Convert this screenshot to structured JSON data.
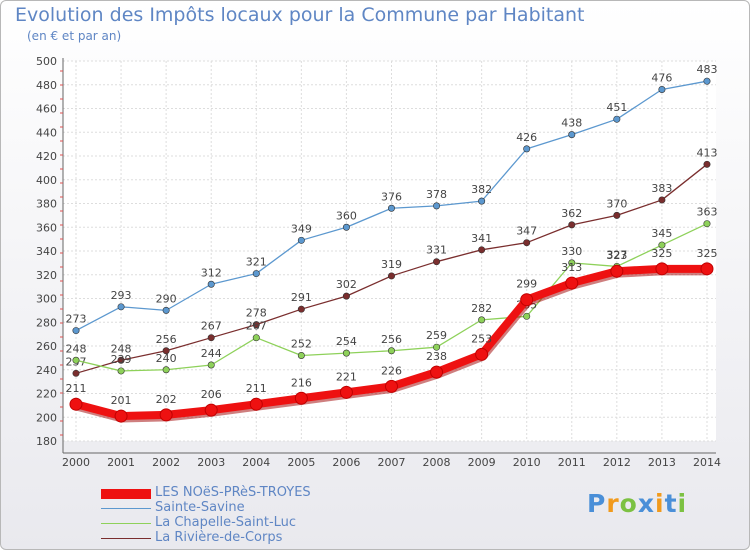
{
  "chart_data": {
    "type": "line",
    "title": "Evolution des Impôts locaux pour la Commune par Habitant",
    "subtitle": "(en € et par an)",
    "xlabel": "",
    "ylabel": "",
    "ylim": [
      180,
      500
    ],
    "yticks": [
      180,
      200,
      220,
      240,
      260,
      280,
      300,
      320,
      340,
      360,
      380,
      400,
      420,
      440,
      460,
      480,
      500
    ],
    "categories": [
      "2000",
      "2001",
      "2002",
      "2003",
      "2004",
      "2005",
      "2006",
      "2007",
      "2008",
      "2009",
      "2010",
      "2011",
      "2012",
      "2013",
      "2014"
    ],
    "grid": true,
    "legend_position": "bottom-left",
    "series": [
      {
        "name": "Sainte-Savine",
        "color": "#5c98cf",
        "values": [
          273,
          293,
          290,
          312,
          321,
          349,
          360,
          376,
          378,
          382,
          426,
          438,
          451,
          476,
          483
        ],
        "labels": [
          "273",
          "293",
          "290",
          "312",
          "321",
          "349",
          "360",
          "376",
          "378",
          "382",
          "426",
          "438",
          "451",
          "476",
          "483"
        ]
      },
      {
        "name": "La Rivière-de-Corps",
        "color": "#7a2e2e",
        "values": [
          237,
          248,
          256,
          267,
          278,
          291,
          302,
          319,
          331,
          341,
          347,
          362,
          370,
          383,
          413
        ],
        "labels": [
          "237",
          "248",
          "256",
          "267",
          "278",
          "291",
          "302",
          "319",
          "331",
          "341",
          "347",
          "362",
          "370",
          "383",
          "413"
        ]
      },
      {
        "name": "La Chapelle-Saint-Luc",
        "color": "#8ed15a",
        "values": [
          248,
          239,
          240,
          244,
          267,
          252,
          254,
          256,
          259,
          282,
          285,
          330,
          327,
          345,
          363
        ],
        "labels": [
          "248",
          "239",
          "240",
          "244",
          "267",
          "252",
          "254",
          "256",
          "259",
          "282",
          "285",
          "330",
          "327",
          "345",
          "363"
        ]
      },
      {
        "name": "LES NOëS-PRèS-TROYES",
        "color": "#ee1111",
        "values": [
          211,
          201,
          202,
          206,
          211,
          216,
          221,
          226,
          238,
          253,
          299,
          313,
          323,
          325,
          325
        ],
        "labels": [
          "211",
          "201",
          "202",
          "206",
          "211",
          "216",
          "221",
          "226",
          "238",
          "253",
          "299",
          "313",
          "323",
          "325",
          "325"
        ]
      }
    ],
    "legend": [
      {
        "name": "LES NOëS-PRèS-TROYES",
        "color": "#ee1111",
        "style": "thick"
      },
      {
        "name": "Sainte-Savine",
        "color": "#5c98cf",
        "style": "thin"
      },
      {
        "name": "La Chapelle-Saint-Luc",
        "color": "#8ed15a",
        "style": "thin"
      },
      {
        "name": "La Rivière-de-Corps",
        "color": "#7a2e2e",
        "style": "thin"
      }
    ]
  },
  "branding": {
    "letters": [
      "P",
      "r",
      "o",
      "x",
      "i",
      "t",
      "i"
    ],
    "colors": [
      "#4a8fd8",
      "#f19a1c",
      "#7cc142",
      "#4a8fd8",
      "#f19a1c",
      "#4a8fd8",
      "#7cc142"
    ]
  }
}
